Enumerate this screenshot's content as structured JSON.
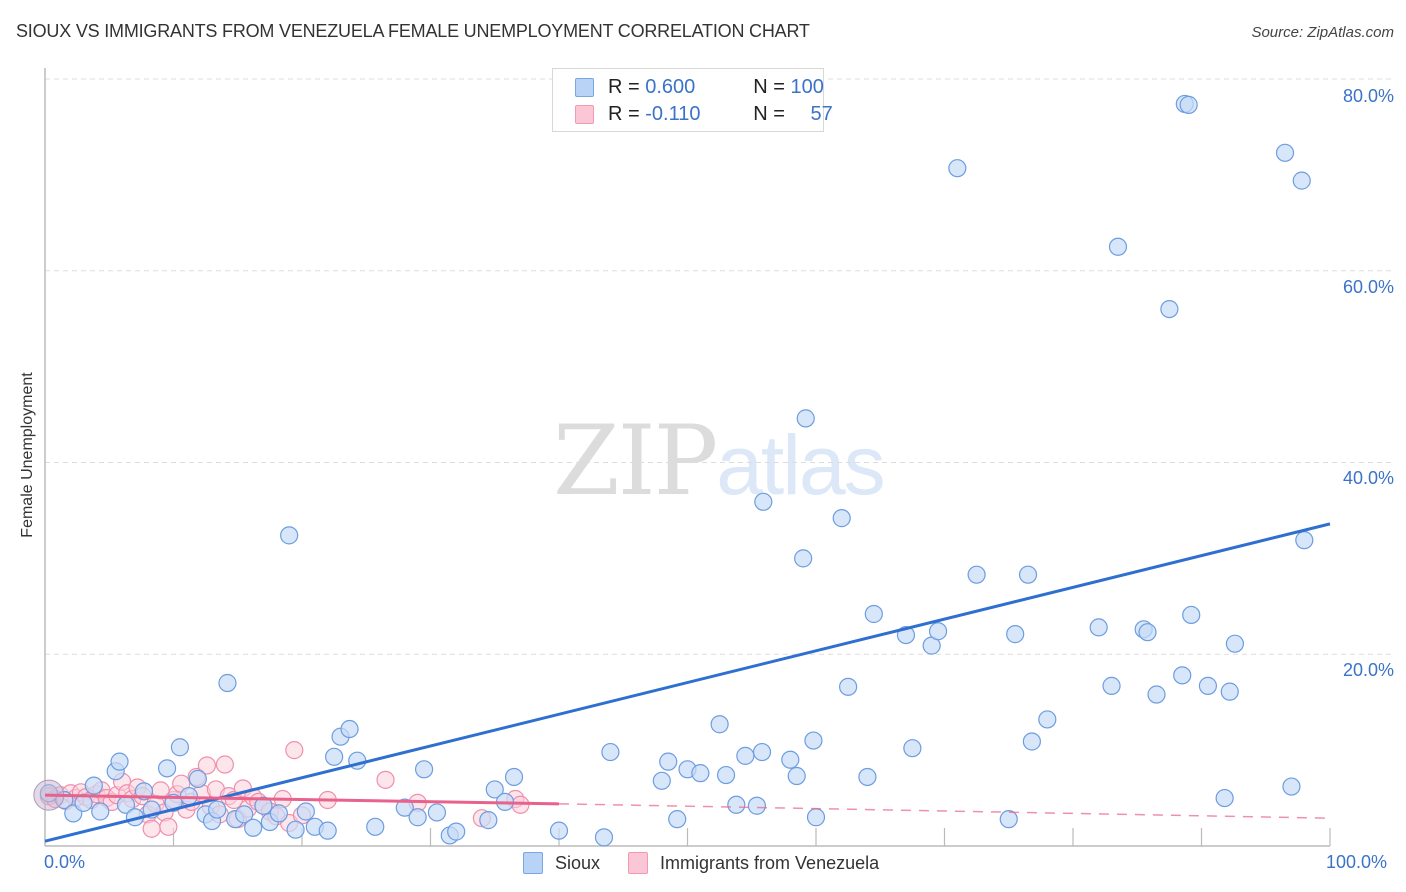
{
  "header": {
    "title": "SIOUX VS IMMIGRANTS FROM VENEZUELA FEMALE UNEMPLOYMENT CORRELATION CHART",
    "source": "Source: ZipAtlas.com"
  },
  "watermark": {
    "zip": "ZIP",
    "atlas": "atlas"
  },
  "legend_top": {
    "rows": [
      {
        "r_label": "R = ",
        "r_value": "0.600",
        "n_label": "N = ",
        "n_value": "100"
      },
      {
        "r_label": "R = ",
        "r_value": "-0.110",
        "n_label": "N = ",
        "n_value": "57"
      }
    ]
  },
  "legend_bottom": {
    "items": [
      {
        "label": "Sioux"
      },
      {
        "label": "Immigrants from Venezuela"
      }
    ]
  },
  "axes": {
    "ylabel": "Female Unemployment",
    "y_ticks": [
      "80.0%",
      "60.0%",
      "40.0%",
      "20.0%"
    ],
    "x_ticks": [
      "0.0%",
      "100.0%"
    ]
  },
  "colors": {
    "sioux_fill": "#c8dcf6",
    "sioux_stroke": "#6d9de0",
    "sioux_line": "#2f6fd0",
    "venezuela_fill": "#fbd0dc",
    "venezuela_stroke": "#ee90ac",
    "venezuela_line": "#e8628c",
    "tick_label": "#3b73c9"
  },
  "chart_data": {
    "type": "scatter",
    "title": "SIOUX VS IMMIGRANTS FROM VENEZUELA FEMALE UNEMPLOYMENT CORRELATION CHART",
    "xlabel": "",
    "ylabel": "Female Unemployment",
    "xlim": [
      0,
      100
    ],
    "ylim": [
      0,
      80
    ],
    "x_tick_labels": [
      "0.0%",
      "100.0%"
    ],
    "y_tick_labels": [
      "20.0%",
      "40.0%",
      "60.0%",
      "80.0%"
    ],
    "grid": "horizontal dashed",
    "legend_position": "bottom-center",
    "series": [
      {
        "name": "Sioux",
        "R": 0.6,
        "N": 100,
        "trend": {
          "x": [
            0,
            100
          ],
          "y": [
            0.5,
            33.6
          ]
        },
        "points": [
          [
            0.3,
            5.5
          ],
          [
            1.5,
            4.8
          ],
          [
            2.2,
            3.4
          ],
          [
            3.0,
            4.5
          ],
          [
            3.8,
            6.3
          ],
          [
            4.3,
            3.6
          ],
          [
            5.5,
            7.8
          ],
          [
            5.8,
            8.8
          ],
          [
            6.3,
            4.3
          ],
          [
            7.0,
            3.0
          ],
          [
            7.7,
            5.7
          ],
          [
            8.3,
            3.8
          ],
          [
            9.5,
            8.1
          ],
          [
            10.0,
            4.5
          ],
          [
            10.5,
            10.3
          ],
          [
            11.2,
            5.2
          ],
          [
            11.9,
            7.0
          ],
          [
            12.5,
            3.3
          ],
          [
            13.0,
            2.6
          ],
          [
            13.4,
            3.8
          ],
          [
            14.2,
            17.0
          ],
          [
            14.8,
            2.8
          ],
          [
            15.5,
            3.3
          ],
          [
            16.2,
            1.9
          ],
          [
            17.0,
            4.2
          ],
          [
            17.5,
            2.5
          ],
          [
            18.2,
            3.4
          ],
          [
            19.0,
            32.4
          ],
          [
            19.5,
            1.7
          ],
          [
            20.3,
            3.6
          ],
          [
            21.0,
            2.0
          ],
          [
            22.0,
            1.6
          ],
          [
            22.5,
            9.3
          ],
          [
            23.0,
            11.4
          ],
          [
            23.7,
            12.2
          ],
          [
            24.3,
            8.9
          ],
          [
            25.7,
            2.0
          ],
          [
            28.0,
            4.0
          ],
          [
            29.0,
            3.0
          ],
          [
            29.5,
            8.0
          ],
          [
            30.5,
            3.5
          ],
          [
            31.5,
            1.1
          ],
          [
            32.0,
            1.5
          ],
          [
            34.5,
            2.7
          ],
          [
            35.0,
            5.9
          ],
          [
            35.8,
            4.6
          ],
          [
            36.5,
            7.2
          ],
          [
            40.0,
            1.6
          ],
          [
            43.5,
            0.9
          ],
          [
            44.0,
            9.8
          ],
          [
            48.0,
            6.8
          ],
          [
            48.5,
            8.8
          ],
          [
            49.2,
            2.8
          ],
          [
            50.0,
            8.0
          ],
          [
            51.0,
            7.6
          ],
          [
            52.5,
            12.7
          ],
          [
            53.0,
            7.4
          ],
          [
            53.8,
            4.3
          ],
          [
            54.5,
            9.4
          ],
          [
            55.4,
            4.2
          ],
          [
            55.8,
            9.8
          ],
          [
            55.9,
            35.9
          ],
          [
            58.0,
            9.0
          ],
          [
            59.0,
            30.0
          ],
          [
            58.5,
            7.3
          ],
          [
            59.2,
            44.6
          ],
          [
            60.0,
            3.0
          ],
          [
            59.8,
            11.0
          ],
          [
            62.0,
            34.2
          ],
          [
            62.5,
            16.6
          ],
          [
            64.0,
            7.2
          ],
          [
            64.5,
            24.2
          ],
          [
            67.0,
            22.0
          ],
          [
            67.5,
            10.2
          ],
          [
            69.0,
            20.9
          ],
          [
            69.5,
            22.4
          ],
          [
            71.0,
            70.7
          ],
          [
            72.5,
            28.3
          ],
          [
            75.0,
            2.8
          ],
          [
            75.5,
            22.1
          ],
          [
            76.5,
            28.3
          ],
          [
            76.8,
            10.9
          ],
          [
            78.0,
            13.2
          ],
          [
            82.0,
            22.8
          ],
          [
            83.0,
            16.7
          ],
          [
            83.5,
            62.5
          ],
          [
            85.5,
            22.6
          ],
          [
            85.8,
            22.3
          ],
          [
            86.5,
            15.8
          ],
          [
            87.5,
            56.0
          ],
          [
            88.5,
            17.8
          ],
          [
            88.7,
            77.4
          ],
          [
            89.0,
            77.3
          ],
          [
            89.2,
            24.1
          ],
          [
            90.5,
            16.7
          ],
          [
            91.8,
            5.0
          ],
          [
            92.2,
            16.1
          ],
          [
            92.6,
            21.1
          ],
          [
            96.5,
            72.3
          ],
          [
            97.0,
            6.2
          ],
          [
            97.8,
            69.4
          ],
          [
            98.0,
            31.9
          ]
        ]
      },
      {
        "name": "Immigrants from Venezuela",
        "R": -0.11,
        "N": 57,
        "trend": {
          "x": [
            0,
            40,
            100
          ],
          "y": [
            5.3,
            4.4,
            2.9
          ],
          "solid_until": 40
        },
        "points": [
          [
            0.3,
            5.2
          ],
          [
            0.8,
            4.9
          ],
          [
            1.2,
            5.3
          ],
          [
            1.6,
            4.7
          ],
          [
            2.0,
            5.5
          ],
          [
            2.4,
            5.0
          ],
          [
            2.8,
            5.6
          ],
          [
            3.2,
            5.1
          ],
          [
            3.6,
            4.8
          ],
          [
            4.0,
            5.4
          ],
          [
            4.4,
            5.8
          ],
          [
            4.8,
            5.0
          ],
          [
            5.2,
            4.6
          ],
          [
            5.6,
            5.3
          ],
          [
            6.0,
            6.7
          ],
          [
            6.4,
            5.5
          ],
          [
            6.8,
            4.9
          ],
          [
            7.2,
            6.1
          ],
          [
            7.6,
            5.2
          ],
          [
            8.0,
            3.3
          ],
          [
            8.3,
            1.8
          ],
          [
            8.6,
            4.4
          ],
          [
            9.0,
            5.8
          ],
          [
            9.3,
            3.5
          ],
          [
            9.6,
            2.0
          ],
          [
            10.0,
            4.8
          ],
          [
            10.3,
            5.4
          ],
          [
            10.6,
            6.5
          ],
          [
            11.0,
            3.8
          ],
          [
            11.4,
            4.6
          ],
          [
            11.8,
            7.2
          ],
          [
            12.2,
            5.5
          ],
          [
            12.6,
            8.4
          ],
          [
            12.9,
            4.1
          ],
          [
            13.3,
            5.9
          ],
          [
            13.6,
            3.3
          ],
          [
            14.0,
            8.5
          ],
          [
            14.3,
            5.2
          ],
          [
            14.7,
            4.8
          ],
          [
            15.0,
            2.8
          ],
          [
            15.4,
            6.0
          ],
          [
            15.8,
            3.9
          ],
          [
            16.2,
            5.1
          ],
          [
            16.6,
            4.6
          ],
          [
            17.0,
            4.2
          ],
          [
            17.5,
            3.6
          ],
          [
            18.0,
            3.1
          ],
          [
            18.5,
            4.9
          ],
          [
            19.0,
            2.4
          ],
          [
            19.4,
            10.0
          ],
          [
            20.0,
            3.2
          ],
          [
            22.0,
            4.8
          ],
          [
            26.5,
            6.9
          ],
          [
            29.0,
            4.5
          ],
          [
            34.0,
            2.9
          ],
          [
            36.6,
            4.9
          ],
          [
            37.0,
            4.3
          ]
        ]
      }
    ]
  }
}
